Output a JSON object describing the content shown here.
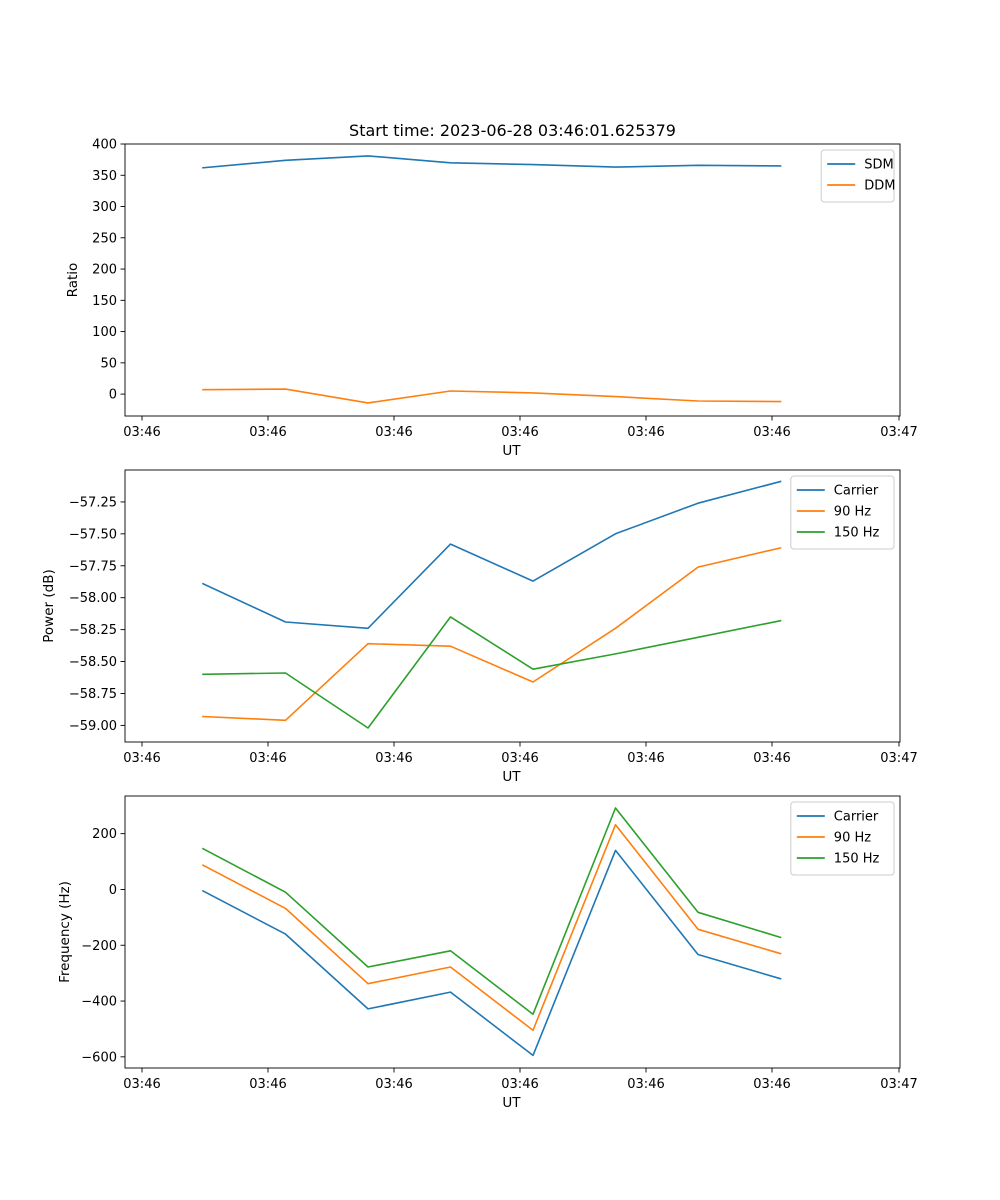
{
  "chart_data": [
    {
      "type": "line",
      "title": "Start time: 2023-06-28 03:46:01.625379",
      "xlabel": "UT",
      "ylabel": "Ratio",
      "x_tick_labels": [
        "03:46",
        "03:46",
        "03:46",
        "03:46",
        "03:46",
        "03:46",
        "03:46"
      ],
      "ylim": [
        -35,
        400
      ],
      "yticks": [
        0,
        50,
        100,
        150,
        200,
        250,
        300,
        350,
        400
      ],
      "ytick_labels": [
        "0",
        "50",
        "100",
        "150",
        "200",
        "250",
        "300",
        "350",
        "400"
      ],
      "legend_position": "top-right",
      "x_points": 8,
      "series": [
        {
          "name": "SDM",
          "color": "#1f77b4",
          "values": [
            362,
            374,
            381,
            370,
            367,
            363,
            366,
            365
          ]
        },
        {
          "name": "DDM",
          "color": "#ff7f0e",
          "values": [
            7,
            8,
            -14,
            5,
            2,
            -4,
            -11,
            -12
          ]
        }
      ]
    },
    {
      "type": "line",
      "title": "",
      "xlabel": "UT",
      "ylabel": "Power (dB)",
      "x_tick_labels": [
        "03:46",
        "03:46",
        "03:46",
        "03:46",
        "03:46",
        "03:46",
        "03:46"
      ],
      "ylim": [
        -59.13,
        -57.0
      ],
      "yticks": [
        -59.0,
        -58.75,
        -58.5,
        -58.25,
        -58.0,
        -57.75,
        -57.5,
        -57.25
      ],
      "ytick_labels": [
        "−59.00",
        "−58.75",
        "−58.50",
        "−58.25",
        "−58.00",
        "−57.75",
        "−57.50",
        "−57.25"
      ],
      "legend_position": "top-right",
      "x_points": 8,
      "series": [
        {
          "name": "Carrier",
          "color": "#1f77b4",
          "values": [
            -57.89,
            -58.19,
            -58.24,
            -57.58,
            -57.87,
            -57.5,
            -57.26,
            -57.09
          ]
        },
        {
          "name": "90 Hz",
          "color": "#ff7f0e",
          "values": [
            -58.93,
            -58.96,
            -58.36,
            -58.38,
            -58.66,
            -58.24,
            -57.76,
            -57.61
          ]
        },
        {
          "name": "150 Hz",
          "color": "#2ca02c",
          "values": [
            -58.6,
            -58.59,
            -59.02,
            -58.15,
            -58.56,
            -58.44,
            -58.31,
            -58.18
          ]
        }
      ]
    },
    {
      "type": "line",
      "title": "",
      "xlabel": "UT",
      "ylabel": "Frequency (Hz)",
      "x_tick_labels": [
        "03:46",
        "03:46",
        "03:46",
        "03:46",
        "03:46",
        "03:46",
        "03:46"
      ],
      "ylim": [
        -640,
        335
      ],
      "yticks": [
        -600,
        -400,
        -200,
        0,
        200
      ],
      "ytick_labels": [
        "−600",
        "−400",
        "−200",
        "0",
        "200"
      ],
      "legend_position": "top-right",
      "x_points": 8,
      "series": [
        {
          "name": "Carrier",
          "color": "#1f77b4",
          "values": [
            -5,
            -160,
            -428,
            -368,
            -595,
            140,
            -233,
            -320
          ]
        },
        {
          "name": "90 Hz",
          "color": "#ff7f0e",
          "values": [
            87,
            -68,
            -338,
            -278,
            -505,
            232,
            -143,
            -230
          ]
        },
        {
          "name": "150 Hz",
          "color": "#2ca02c",
          "values": [
            146,
            -10,
            -278,
            -220,
            -447,
            292,
            -82,
            -172
          ]
        }
      ]
    }
  ]
}
